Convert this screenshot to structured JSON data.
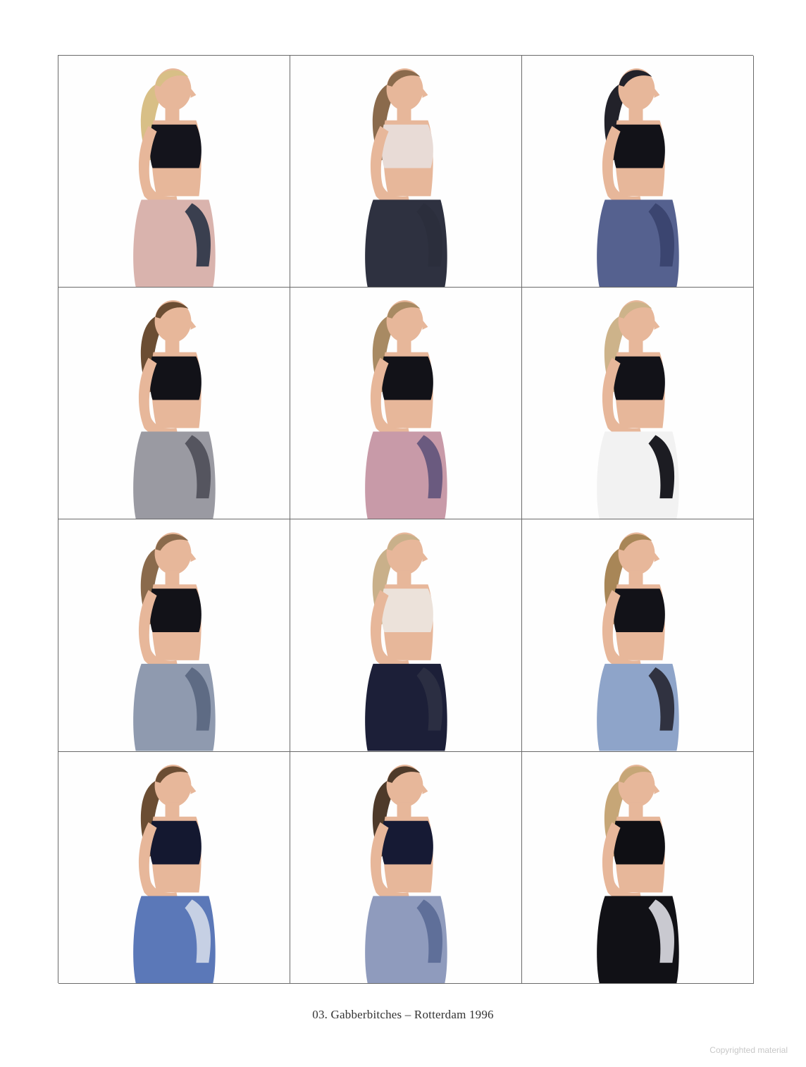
{
  "caption": "03. Gabberbitches – Rotterdam 1996",
  "watermark": "Copyrighted material",
  "skin_color": "#e7b79a",
  "portraits": [
    {
      "hair": "#d8bf86",
      "top": "#14141c",
      "wrap": "#d9b3ad",
      "knot": "#3a3f4f"
    },
    {
      "hair": "#8a6a4c",
      "top": "#e8dbd6",
      "wrap": "#2e3140",
      "knot": "#2b2e3c"
    },
    {
      "hair": "#22222a",
      "top": "#121218",
      "wrap": "#55618f",
      "knot": "#3b4570"
    },
    {
      "hair": "#6b4d33",
      "top": "#121218",
      "wrap": "#9a9aa2",
      "knot": "#55555f"
    },
    {
      "hair": "#a88a63",
      "top": "#121218",
      "wrap": "#c89aa8",
      "knot": "#6a5a7f"
    },
    {
      "hair": "#cdb38a",
      "top": "#121218",
      "wrap": "#f2f2f2",
      "knot": "#1c1c22"
    },
    {
      "hair": "#8a6a4c",
      "top": "#121218",
      "wrap": "#8f9aaf",
      "knot": "#5e6b84"
    },
    {
      "hair": "#c9b08a",
      "top": "#ece2da",
      "wrap": "#1c1f38",
      "knot": "#2b2e42"
    },
    {
      "hair": "#a88657",
      "top": "#121218",
      "wrap": "#8ea4c9",
      "knot": "#303240"
    },
    {
      "hair": "#6b4d33",
      "top": "#141830",
      "wrap": "#5b78b8",
      "knot": "#c6d0e4"
    },
    {
      "hair": "#4e3a2a",
      "top": "#161a34",
      "wrap": "#8f9bbd",
      "knot": "#5f6f99"
    },
    {
      "hair": "#c6a677",
      "top": "#0f0f14",
      "wrap": "#111116",
      "knot": "#c9c9d0"
    }
  ]
}
